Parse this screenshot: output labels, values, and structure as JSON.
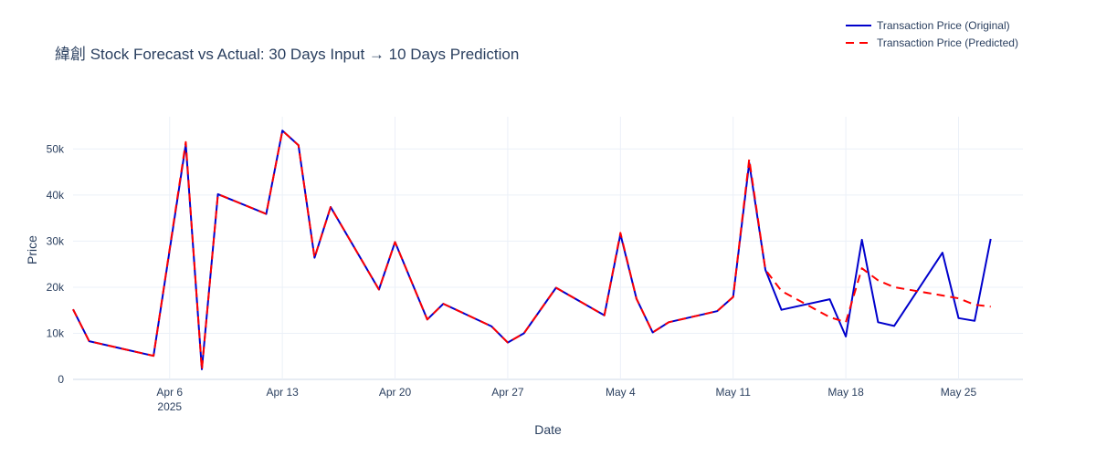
{
  "chart_data": {
    "type": "line",
    "title": "緯創 Stock Forecast vs Actual: 30 Days Input → 10 Days Prediction",
    "xlabel": "Date",
    "ylabel": "Price",
    "xlim": [
      "2025-03-31",
      "2025-05-29"
    ],
    "ylim": [
      0,
      57000
    ],
    "x_ticks": [
      {
        "date": "2025-04-06",
        "label": "Apr 6",
        "sublabel": "2025"
      },
      {
        "date": "2025-04-13",
        "label": "Apr 13",
        "sublabel": ""
      },
      {
        "date": "2025-04-20",
        "label": "Apr 20",
        "sublabel": ""
      },
      {
        "date": "2025-04-27",
        "label": "Apr 27",
        "sublabel": ""
      },
      {
        "date": "2025-05-04",
        "label": "May 4",
        "sublabel": ""
      },
      {
        "date": "2025-05-11",
        "label": "May 11",
        "sublabel": ""
      },
      {
        "date": "2025-05-18",
        "label": "May 18",
        "sublabel": ""
      },
      {
        "date": "2025-05-25",
        "label": "May 25",
        "sublabel": ""
      }
    ],
    "y_ticks": [
      {
        "value": 0,
        "label": "0"
      },
      {
        "value": 10000,
        "label": "10k"
      },
      {
        "value": 20000,
        "label": "20k"
      },
      {
        "value": 30000,
        "label": "30k"
      },
      {
        "value": 40000,
        "label": "40k"
      },
      {
        "value": 50000,
        "label": "50k"
      }
    ],
    "grid": true,
    "legend_position": "top-right",
    "series": [
      {
        "name": "Transaction Price (Original)",
        "color": "#0000cc",
        "dash": "solid",
        "points": [
          [
            "2025-03-31",
            15200
          ],
          [
            "2025-04-01",
            8300
          ],
          [
            "2025-04-05",
            5100
          ],
          [
            "2025-04-07",
            51000
          ],
          [
            "2025-04-08",
            2200
          ],
          [
            "2025-04-09",
            40200
          ],
          [
            "2025-04-12",
            35900
          ],
          [
            "2025-04-13",
            54000
          ],
          [
            "2025-04-14",
            50800
          ],
          [
            "2025-04-15",
            26400
          ],
          [
            "2025-04-16",
            37400
          ],
          [
            "2025-04-19",
            19500
          ],
          [
            "2025-04-20",
            29800
          ],
          [
            "2025-04-22",
            13000
          ],
          [
            "2025-04-23",
            16400
          ],
          [
            "2025-04-26",
            11500
          ],
          [
            "2025-04-27",
            8000
          ],
          [
            "2025-04-28",
            10000
          ],
          [
            "2025-04-30",
            19900
          ],
          [
            "2025-05-03",
            13900
          ],
          [
            "2025-05-04",
            31500
          ],
          [
            "2025-05-05",
            17500
          ],
          [
            "2025-05-06",
            10200
          ],
          [
            "2025-05-07",
            12400
          ],
          [
            "2025-05-10",
            14800
          ],
          [
            "2025-05-11",
            17900
          ],
          [
            "2025-05-12",
            47000
          ],
          [
            "2025-05-13",
            23800
          ],
          [
            "2025-05-14",
            15100
          ],
          [
            "2025-05-17",
            17400
          ],
          [
            "2025-05-18",
            9300
          ],
          [
            "2025-05-19",
            30300
          ],
          [
            "2025-05-20",
            12400
          ],
          [
            "2025-05-21",
            11600
          ],
          [
            "2025-05-24",
            27500
          ],
          [
            "2025-05-25",
            13300
          ],
          [
            "2025-05-26",
            12700
          ],
          [
            "2025-05-27",
            30500
          ]
        ]
      },
      {
        "name": "Transaction Price (Predicted)",
        "color": "#ff0000",
        "dash": "dashed",
        "points": [
          [
            "2025-03-31",
            15200
          ],
          [
            "2025-04-01",
            8300
          ],
          [
            "2025-04-05",
            5100
          ],
          [
            "2025-04-07",
            51500
          ],
          [
            "2025-04-08",
            2100
          ],
          [
            "2025-04-09",
            40200
          ],
          [
            "2025-04-12",
            35900
          ],
          [
            "2025-04-13",
            54000
          ],
          [
            "2025-04-14",
            50800
          ],
          [
            "2025-04-15",
            26400
          ],
          [
            "2025-04-16",
            37400
          ],
          [
            "2025-04-19",
            19500
          ],
          [
            "2025-04-20",
            29800
          ],
          [
            "2025-04-22",
            13000
          ],
          [
            "2025-04-23",
            16400
          ],
          [
            "2025-04-26",
            11500
          ],
          [
            "2025-04-27",
            8000
          ],
          [
            "2025-04-28",
            10000
          ],
          [
            "2025-04-30",
            19900
          ],
          [
            "2025-05-03",
            13900
          ],
          [
            "2025-05-04",
            31800
          ],
          [
            "2025-05-05",
            17500
          ],
          [
            "2025-05-06",
            10200
          ],
          [
            "2025-05-07",
            12400
          ],
          [
            "2025-05-10",
            14800
          ],
          [
            "2025-05-11",
            17900
          ],
          [
            "2025-05-12",
            47800
          ],
          [
            "2025-05-13",
            23800
          ],
          [
            "2025-05-14",
            19200
          ],
          [
            "2025-05-17",
            13500
          ],
          [
            "2025-05-18",
            12400
          ],
          [
            "2025-05-19",
            24100
          ],
          [
            "2025-05-20",
            21500
          ],
          [
            "2025-05-21",
            20000
          ],
          [
            "2025-05-24",
            18200
          ],
          [
            "2025-05-25",
            17600
          ],
          [
            "2025-05-26",
            16200
          ],
          [
            "2025-05-27",
            15800
          ]
        ]
      }
    ]
  }
}
